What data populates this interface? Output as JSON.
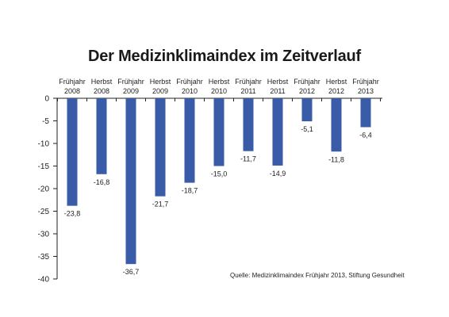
{
  "chart_data": {
    "type": "bar",
    "title": "Der Medizinklimaindex im Zeitverlauf",
    "categories": [
      [
        "Frühjahr",
        "2008"
      ],
      [
        "Herbst",
        "2008"
      ],
      [
        "Frühjahr",
        "2009"
      ],
      [
        "Herbst",
        "2009"
      ],
      [
        "Frühjahr",
        "2010"
      ],
      [
        "Herbst",
        "2010"
      ],
      [
        "Frühjahr",
        "2011"
      ],
      [
        "Herbst",
        "2011"
      ],
      [
        "Frühjahr",
        "2012"
      ],
      [
        "Herbst",
        "2012"
      ],
      [
        "Frühjahr",
        "2013"
      ]
    ],
    "values": [
      -23.8,
      -16.8,
      -36.7,
      -21.7,
      -18.7,
      -15.0,
      -11.7,
      -14.9,
      -5.1,
      -11.8,
      -6.4
    ],
    "value_labels": [
      "-23,8",
      "-16,8",
      "-36,7",
      "-21,7",
      "-18,7",
      "-15,0",
      "-11,7",
      "-14,9",
      "-5,1",
      "-11,8",
      "-6,4"
    ],
    "ylim": [
      -40,
      0
    ],
    "yticks": [
      0,
      -5,
      -10,
      -15,
      -20,
      -25,
      -30,
      -35,
      -40
    ],
    "xlabel": "",
    "ylabel": "",
    "grid": false,
    "legend": "none",
    "bar_color": "#3a5ba8",
    "source": "Quelle:  Medizinklimaindex Frühjahr 2013, Stiftung Gesundheit"
  }
}
